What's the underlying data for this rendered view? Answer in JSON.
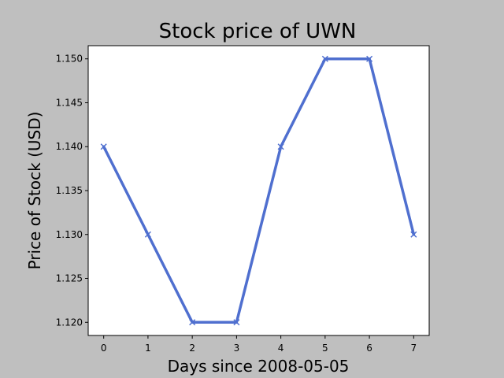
{
  "chart_data": {
    "type": "line",
    "title": "Stock price of UWN",
    "xlabel": "Days since 2008-05-05",
    "ylabel": "Price of Stock (USD)",
    "x": [
      0,
      1,
      2,
      3,
      4,
      5,
      6,
      7
    ],
    "series": [
      {
        "values": [
          1.14,
          1.13,
          1.12,
          1.12,
          1.14,
          1.15,
          1.15,
          1.13
        ]
      }
    ],
    "x_ticks": [
      "0",
      "1",
      "2",
      "3",
      "4",
      "5",
      "6",
      "7"
    ],
    "y_ticks": [
      1.12,
      1.125,
      1.13,
      1.135,
      1.14,
      1.145,
      1.15
    ],
    "y_tick_labels": [
      "1.120",
      "1.125",
      "1.130",
      "1.135",
      "1.140",
      "1.145",
      "1.150"
    ],
    "xlim": [
      -0.35,
      7.35
    ],
    "ylim": [
      1.1185,
      1.1515
    ],
    "marker": "x",
    "line_color": "#4f6fcf",
    "plot_background": "#ffffff",
    "figure_background": "#bfbfbf",
    "grid": false,
    "legend": "none"
  }
}
